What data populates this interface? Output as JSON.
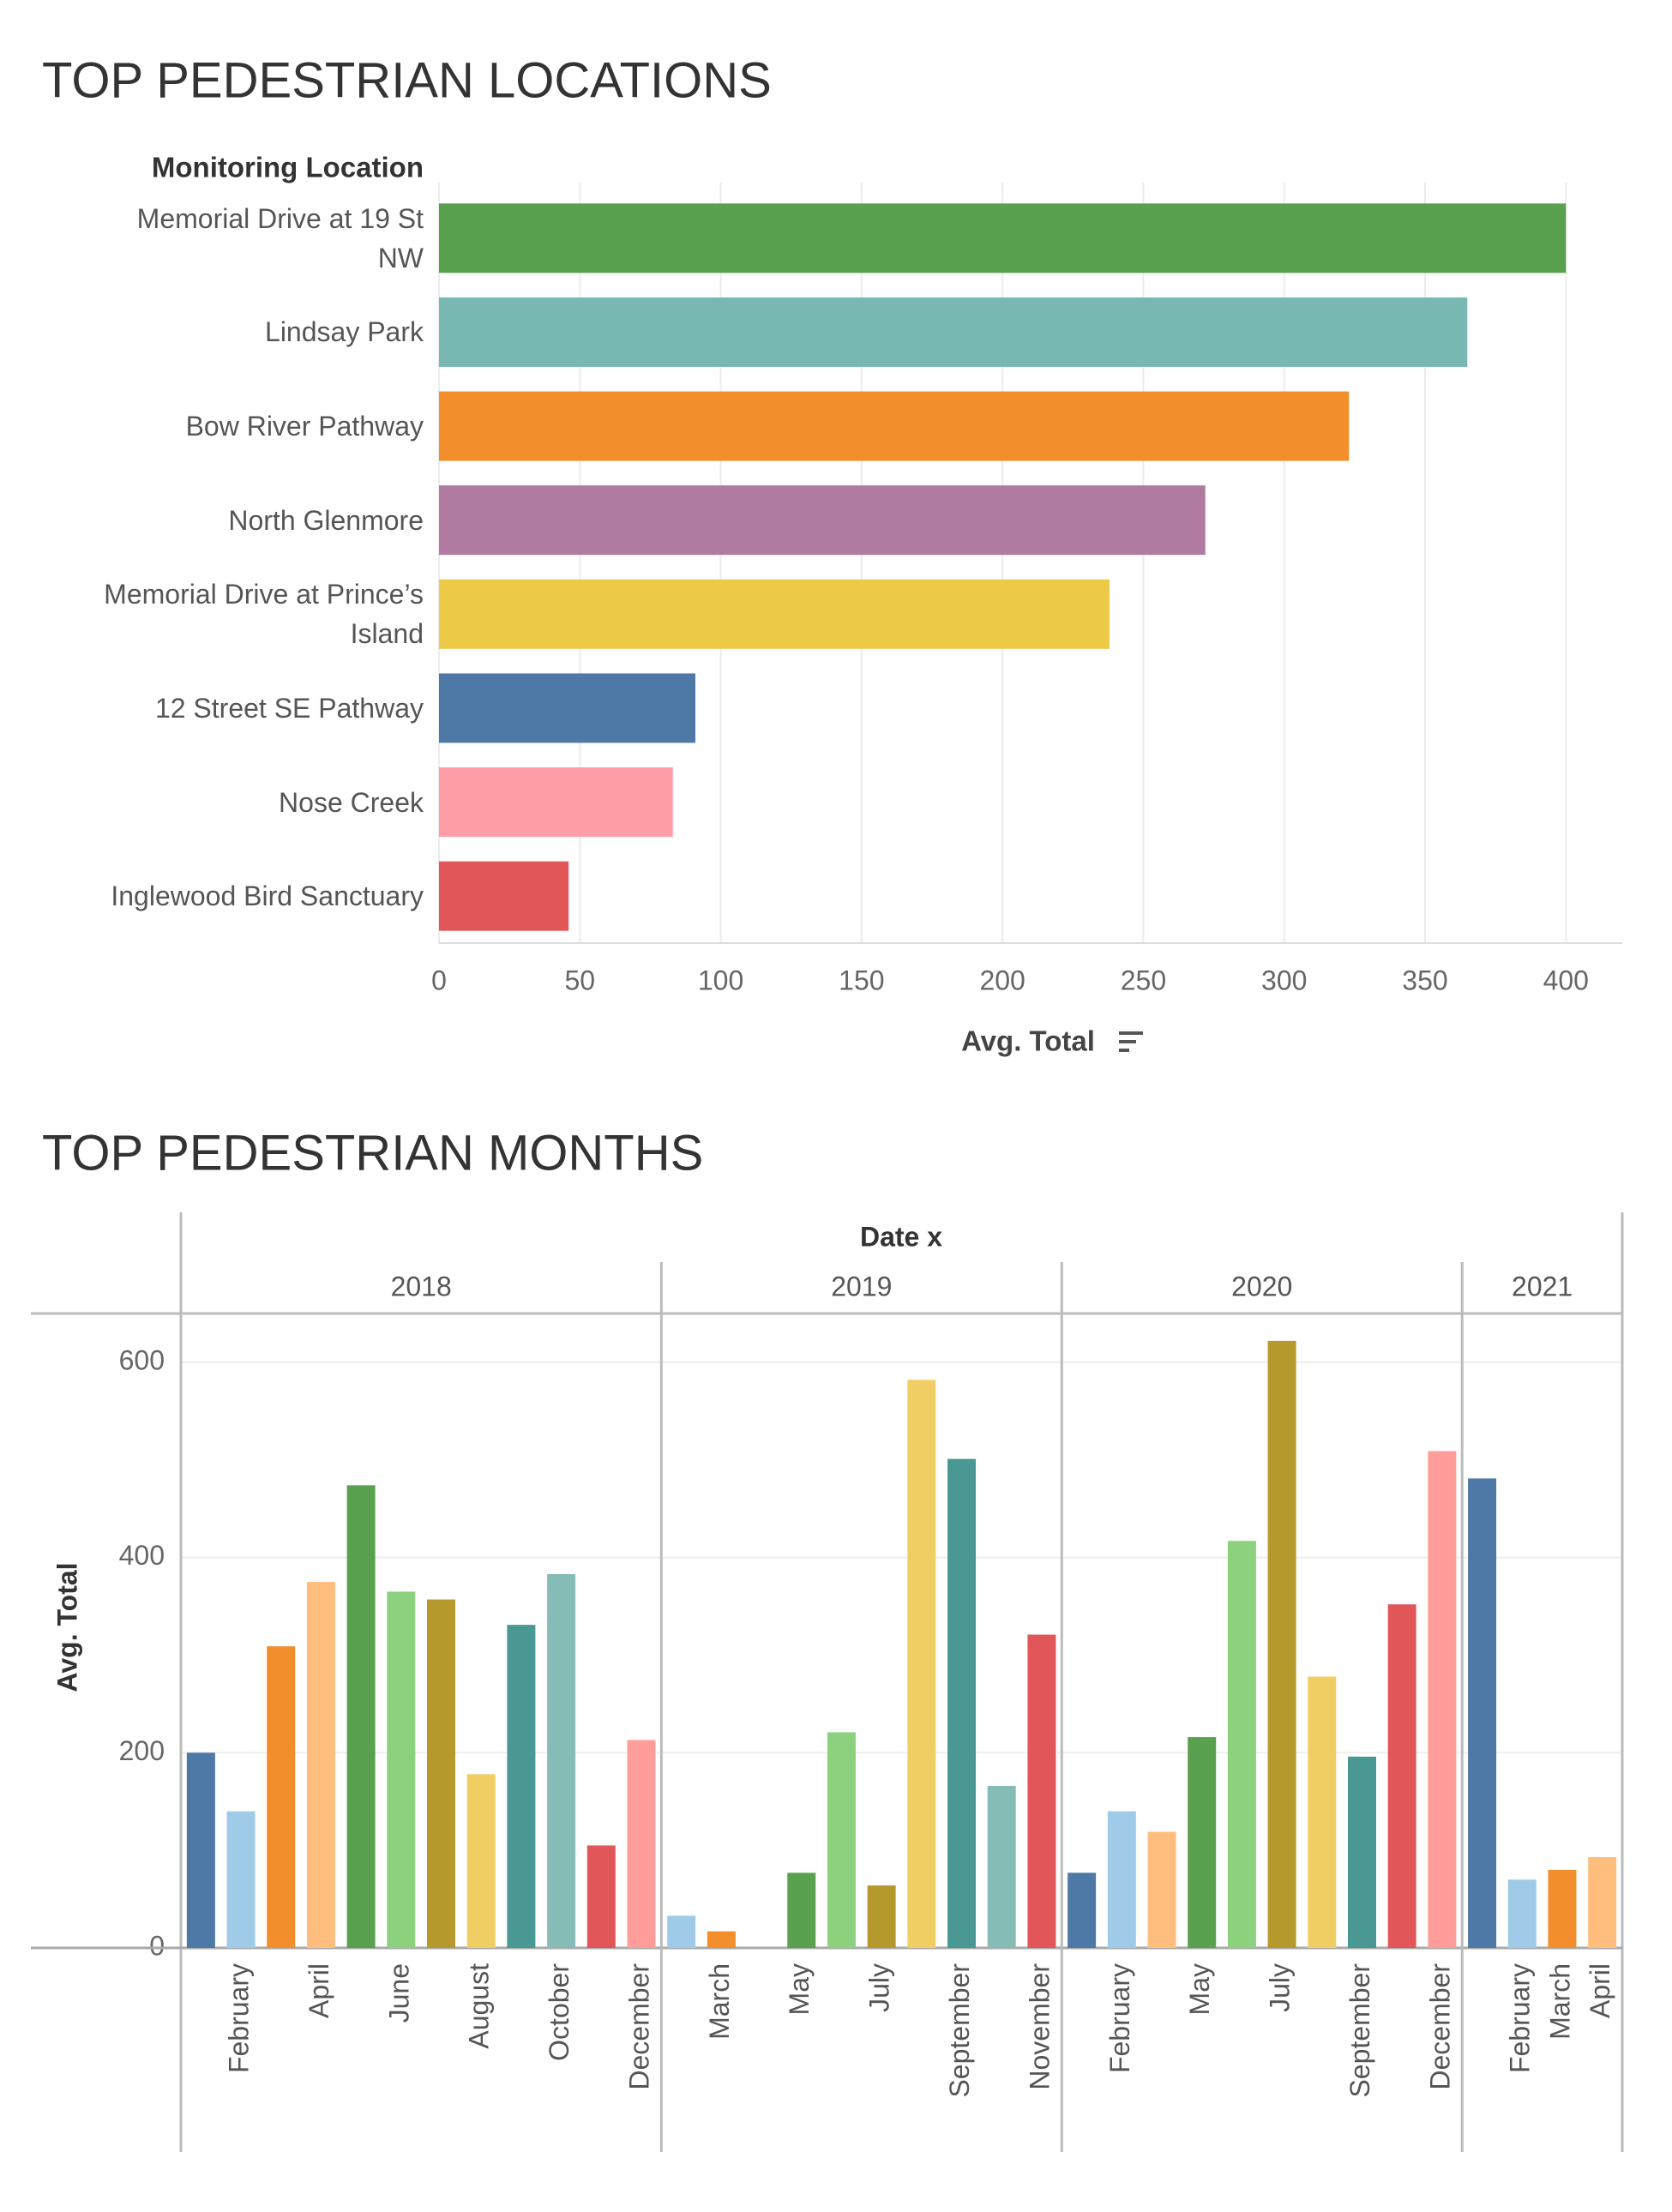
{
  "chart_data": [
    {
      "type": "hbar",
      "title": "TOP PEDESTRIAN LOCATIONS",
      "y_label": "Monitoring Location",
      "x_label": "Avg. Total",
      "categories": [
        "Memorial Drive at 19 St NW",
        "Lindsay Park",
        "Bow River Pathway",
        "North Glenmore",
        "Memorial Drive at Prince’s Island",
        "12 Street SE Pathway",
        "Nose Creek",
        "Inglewood Bird Sanctuary"
      ],
      "values": [
        400,
        365,
        323,
        272,
        238,
        91,
        83,
        46
      ],
      "colors": [
        "#59a14f",
        "#79b7b2",
        "#f28e2b",
        "#b07aa1",
        "#edc948",
        "#4e79a7",
        "#ff9da7",
        "#e15759"
      ],
      "xlim": [
        0,
        420
      ],
      "xticks": [
        0,
        50,
        100,
        150,
        200,
        250,
        300,
        350,
        400
      ],
      "grid": true
    },
    {
      "type": "panel-bar",
      "title": "TOP PEDESTRIAN MONTHS",
      "x_label": "Date x",
      "y_label": "Avg. Total",
      "ylim": [
        0,
        650
      ],
      "yticks": [
        0,
        200,
        400,
        600
      ],
      "grid": true,
      "panels": [
        {
          "name": "2018",
          "categories": [
            null,
            "February",
            null,
            "April",
            null,
            "June",
            null,
            "August",
            null,
            "October",
            null,
            "December"
          ],
          "values": [
            200,
            140,
            309,
            375,
            474,
            365,
            357,
            178,
            331,
            383,
            105,
            213
          ],
          "colors": [
            "#4e79a7",
            "#a0cbe8",
            "#f28e2b",
            "#ffbe7d",
            "#59a14f",
            "#8cd17d",
            "#b6992d",
            "#f1ce63",
            "#499894",
            "#86bcb6",
            "#e15759",
            "#ff9d9a"
          ]
        },
        {
          "name": "2019",
          "categories": [
            null,
            "March",
            null,
            "May",
            null,
            "July",
            null,
            "September",
            null,
            "November"
          ],
          "values": [
            33,
            17,
            null,
            77,
            221,
            64,
            582,
            501,
            166,
            321
          ],
          "colors": [
            "#a0cbe8",
            "#f28e2b",
            null,
            "#59a14f",
            "#8cd17d",
            "#b6992d",
            "#f1ce63",
            "#499894",
            "#86bcb6",
            "#e15759"
          ]
        },
        {
          "name": "2020",
          "categories": [
            null,
            "February",
            null,
            "May",
            null,
            "July",
            null,
            "September",
            null,
            "December"
          ],
          "values": [
            77,
            140,
            119,
            216,
            417,
            622,
            278,
            196,
            352,
            509
          ],
          "colors": [
            "#4e79a7",
            "#a0cbe8",
            "#ffbe7d",
            "#59a14f",
            "#8cd17d",
            "#b6992d",
            "#f1ce63",
            "#499894",
            "#e15759",
            "#ff9d9a"
          ]
        },
        {
          "name": "2021",
          "categories": [
            null,
            "February",
            "March",
            "April"
          ],
          "values": [
            481,
            70,
            80,
            93
          ],
          "colors": [
            "#4e79a7",
            "#a0cbe8",
            "#f28e2b",
            "#ffbe7d"
          ]
        }
      ]
    }
  ]
}
